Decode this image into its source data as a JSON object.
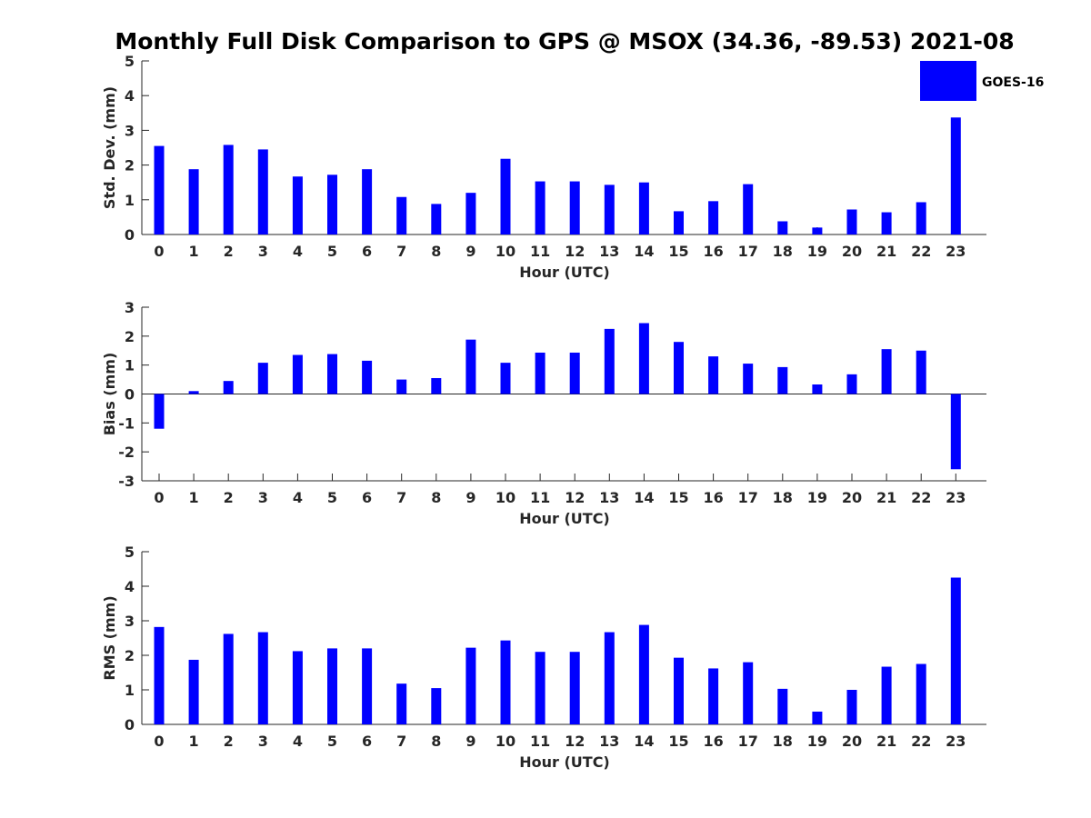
{
  "title": "Monthly Full Disk Comparison to GPS @ MSOX (34.36, -89.53) 2021-08",
  "legend": {
    "label": "GOES-16",
    "color": "#0000ff",
    "placement": "top-right"
  },
  "chart_data": [
    {
      "type": "bar",
      "xlabel": "Hour (UTC)",
      "ylabel": "Std. Dev. (mm)",
      "categories": [
        "0",
        "1",
        "2",
        "3",
        "4",
        "5",
        "6",
        "7",
        "8",
        "9",
        "10",
        "11",
        "12",
        "13",
        "14",
        "15",
        "16",
        "17",
        "18",
        "19",
        "20",
        "21",
        "22",
        "23"
      ],
      "series": [
        {
          "name": "GOES-16",
          "color": "#0000ff",
          "values": [
            2.55,
            1.88,
            2.58,
            2.45,
            1.67,
            1.72,
            1.88,
            1.08,
            0.88,
            1.2,
            2.18,
            1.53,
            1.53,
            1.43,
            1.5,
            0.67,
            0.96,
            1.45,
            0.38,
            0.2,
            0.72,
            0.64,
            0.93,
            3.37
          ]
        }
      ],
      "ylim": [
        0,
        5
      ],
      "yticks": [
        0,
        1,
        2,
        3,
        4,
        5
      ],
      "grid": false
    },
    {
      "type": "bar",
      "xlabel": "Hour (UTC)",
      "ylabel": "Bias (mm)",
      "categories": [
        "0",
        "1",
        "2",
        "3",
        "4",
        "5",
        "6",
        "7",
        "8",
        "9",
        "10",
        "11",
        "12",
        "13",
        "14",
        "15",
        "16",
        "17",
        "18",
        "19",
        "20",
        "21",
        "22",
        "23"
      ],
      "series": [
        {
          "name": "GOES-16",
          "color": "#0000ff",
          "values": [
            -1.2,
            0.1,
            0.45,
            1.08,
            1.35,
            1.38,
            1.15,
            0.5,
            0.55,
            1.88,
            1.08,
            1.43,
            1.43,
            2.25,
            2.45,
            1.8,
            1.3,
            1.05,
            0.93,
            0.33,
            0.68,
            1.55,
            1.5,
            -2.6
          ]
        }
      ],
      "ylim": [
        -3,
        3
      ],
      "yticks": [
        -3,
        -2,
        -1,
        0,
        1,
        2,
        3
      ],
      "grid": false
    },
    {
      "type": "bar",
      "xlabel": "Hour (UTC)",
      "ylabel": "RMS (mm)",
      "categories": [
        "0",
        "1",
        "2",
        "3",
        "4",
        "5",
        "6",
        "7",
        "8",
        "9",
        "10",
        "11",
        "12",
        "13",
        "14",
        "15",
        "16",
        "17",
        "18",
        "19",
        "20",
        "21",
        "22",
        "23"
      ],
      "series": [
        {
          "name": "GOES-16",
          "color": "#0000ff",
          "values": [
            2.82,
            1.87,
            2.62,
            2.67,
            2.12,
            2.2,
            2.2,
            1.18,
            1.05,
            2.22,
            2.43,
            2.1,
            2.1,
            2.67,
            2.88,
            1.93,
            1.62,
            1.8,
            1.03,
            0.37,
            1.0,
            1.67,
            1.75,
            4.25
          ]
        }
      ],
      "ylim": [
        0,
        5
      ],
      "yticks": [
        0,
        1,
        2,
        3,
        4,
        5
      ],
      "grid": false
    }
  ]
}
